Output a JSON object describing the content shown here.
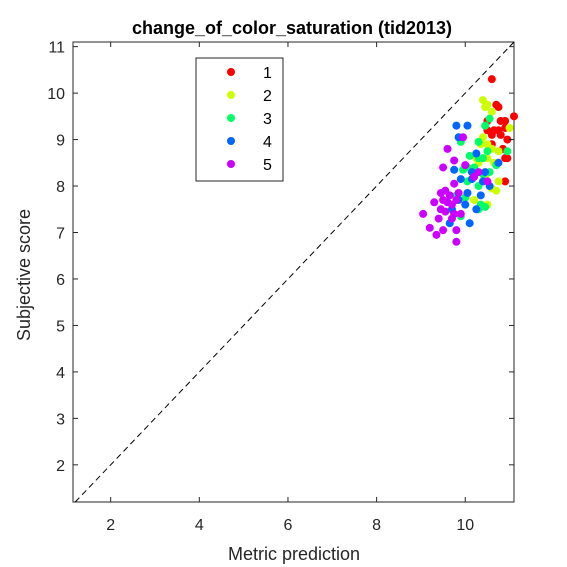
{
  "chart_data": {
    "type": "scatter",
    "title": "change_of_color_saturation (tid2013)",
    "xlabel": "Metric prediction",
    "ylabel": "Subjective score",
    "xlim": [
      1.15,
      11.1
    ],
    "ylim": [
      1.2,
      11.1
    ],
    "xticks": [
      2,
      4,
      6,
      8,
      10
    ],
    "yticks": [
      2,
      3,
      4,
      5,
      6,
      7,
      8,
      9,
      10,
      11
    ],
    "grid": false,
    "legend_position": "top-left",
    "reference_line": "y = x (dashed)",
    "series": [
      {
        "name": "1",
        "color": "#ff0000",
        "points": [
          [
            10.6,
            10.3
          ],
          [
            10.7,
            9.75
          ],
          [
            10.75,
            9.7
          ],
          [
            10.5,
            9.4
          ],
          [
            10.8,
            9.4
          ],
          [
            10.9,
            9.4
          ],
          [
            11.1,
            9.5
          ],
          [
            10.5,
            9.2
          ],
          [
            10.65,
            9.2
          ],
          [
            10.75,
            9.2
          ],
          [
            10.9,
            9.25
          ],
          [
            10.6,
            9.1
          ],
          [
            10.8,
            9.1
          ],
          [
            10.95,
            9.0
          ],
          [
            10.6,
            8.9
          ],
          [
            10.85,
            8.8
          ],
          [
            10.9,
            8.6
          ],
          [
            10.95,
            8.6
          ],
          [
            10.9,
            8.1
          ]
        ]
      },
      {
        "name": "2",
        "color": "#ccff00",
        "points": [
          [
            10.4,
            9.85
          ],
          [
            10.5,
            9.75
          ],
          [
            10.45,
            9.7
          ],
          [
            10.6,
            9.6
          ],
          [
            11.0,
            9.25
          ],
          [
            10.4,
            9.05
          ],
          [
            10.35,
            8.9
          ],
          [
            10.5,
            8.9
          ],
          [
            10.6,
            8.8
          ],
          [
            10.75,
            8.75
          ],
          [
            10.25,
            8.6
          ],
          [
            10.5,
            8.6
          ],
          [
            10.3,
            8.5
          ],
          [
            10.65,
            8.5
          ],
          [
            10.45,
            8.2
          ],
          [
            10.75,
            8.1
          ],
          [
            10.6,
            7.95
          ],
          [
            10.7,
            7.9
          ],
          [
            10.2,
            7.7
          ],
          [
            10.5,
            7.6
          ]
        ]
      },
      {
        "name": "3",
        "color": "#00ff66",
        "points": [
          [
            10.55,
            9.45
          ],
          [
            10.45,
            9.3
          ],
          [
            9.9,
            8.95
          ],
          [
            10.3,
            8.95
          ],
          [
            10.5,
            8.75
          ],
          [
            10.95,
            8.75
          ],
          [
            10.1,
            8.65
          ],
          [
            10.3,
            8.6
          ],
          [
            10.4,
            8.6
          ],
          [
            10.7,
            8.45
          ],
          [
            9.95,
            8.35
          ],
          [
            10.05,
            8.4
          ],
          [
            10.2,
            8.4
          ],
          [
            10.4,
            8.25
          ],
          [
            10.55,
            8.3
          ],
          [
            10.05,
            8.1
          ],
          [
            10.3,
            8.0
          ],
          [
            9.8,
            7.8
          ],
          [
            10.0,
            7.75
          ],
          [
            10.35,
            7.6
          ],
          [
            10.45,
            7.55
          ],
          [
            10.3,
            7.5
          ],
          [
            9.9,
            7.35
          ]
        ]
      },
      {
        "name": "4",
        "color": "#0066ff",
        "points": [
          [
            9.8,
            9.3
          ],
          [
            10.05,
            9.3
          ],
          [
            9.85,
            9.05
          ],
          [
            10.25,
            8.7
          ],
          [
            9.75,
            8.35
          ],
          [
            10.45,
            8.3
          ],
          [
            10.75,
            8.5
          ],
          [
            10.15,
            8.3
          ],
          [
            9.9,
            8.15
          ],
          [
            10.15,
            8.15
          ],
          [
            10.4,
            8.1
          ],
          [
            10.55,
            8.0
          ],
          [
            10.05,
            7.85
          ],
          [
            10.35,
            7.8
          ],
          [
            9.85,
            7.7
          ],
          [
            10.0,
            7.6
          ],
          [
            9.7,
            7.5
          ],
          [
            10.25,
            7.5
          ],
          [
            9.65,
            7.2
          ],
          [
            10.1,
            7.2
          ]
        ]
      },
      {
        "name": "5",
        "color": "#cc00ff",
        "points": [
          [
            9.6,
            8.8
          ],
          [
            9.95,
            9.05
          ],
          [
            9.75,
            8.55
          ],
          [
            10.0,
            8.45
          ],
          [
            10.3,
            8.3
          ],
          [
            9.5,
            8.4
          ],
          [
            10.5,
            8.1
          ],
          [
            10.2,
            8.2
          ],
          [
            9.75,
            8.05
          ],
          [
            9.45,
            7.85
          ],
          [
            9.55,
            7.9
          ],
          [
            9.65,
            7.8
          ],
          [
            9.85,
            7.85
          ],
          [
            9.3,
            7.65
          ],
          [
            9.5,
            7.7
          ],
          [
            9.6,
            7.65
          ],
          [
            9.7,
            7.6
          ],
          [
            9.8,
            7.7
          ],
          [
            9.45,
            7.5
          ],
          [
            9.55,
            7.45
          ],
          [
            9.75,
            7.4
          ],
          [
            9.9,
            7.4
          ],
          [
            9.05,
            7.4
          ],
          [
            9.4,
            7.3
          ],
          [
            9.7,
            7.3
          ],
          [
            9.2,
            7.1
          ],
          [
            9.5,
            7.05
          ],
          [
            9.8,
            7.05
          ],
          [
            9.35,
            6.95
          ],
          [
            9.8,
            6.8
          ]
        ]
      }
    ]
  }
}
